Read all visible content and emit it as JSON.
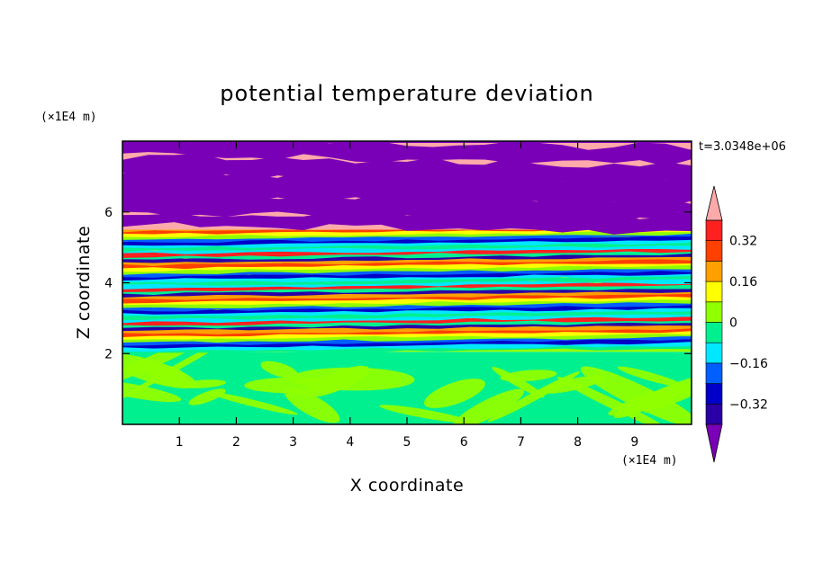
{
  "chart_data": {
    "type": "heatmap",
    "title": "potential temperature deviation",
    "xlabel": "X coordinate",
    "ylabel": "Z coordinate",
    "x_unit": "(×1E4 m)",
    "y_unit": "(×1E4 m)",
    "time_label": "t=3.0348e+06",
    "xlim": [
      0,
      10
    ],
    "ylim": [
      0,
      8
    ],
    "x_ticks": [
      1,
      2,
      3,
      4,
      5,
      6,
      7,
      8,
      9
    ],
    "y_ticks": [
      2,
      4,
      6
    ],
    "colorbar": {
      "levels": [
        -0.4,
        -0.32,
        -0.24,
        -0.16,
        -0.08,
        0,
        0.08,
        0.16,
        0.24,
        0.32,
        0.4
      ],
      "tick_labels": [
        "0.32",
        "0.16",
        "0",
        "−0.16",
        "−0.32"
      ],
      "tick_values": [
        0.32,
        0.16,
        0,
        -0.16,
        -0.32
      ],
      "colors_low_to_high": [
        "#7a00b8",
        "#2a00a6",
        "#0000c8",
        "#0060ff",
        "#00e8ff",
        "#00f090",
        "#90ff00",
        "#ffff00",
        "#ffa000",
        "#ff4000",
        "#ff2020",
        "#ffaaaa"
      ],
      "extend": "both"
    },
    "regions": [
      {
        "z_range": [
          0,
          2
        ],
        "description_values": "mostly 0 to 0.08 (green/lime)"
      },
      {
        "z_range": [
          2,
          5.5
        ],
        "description_values": "alternating bands -0.4 to 0.4"
      },
      {
        "z_range": [
          5.5,
          8
        ],
        "description_values": "bands of >0.4 and <-0.4"
      }
    ]
  }
}
